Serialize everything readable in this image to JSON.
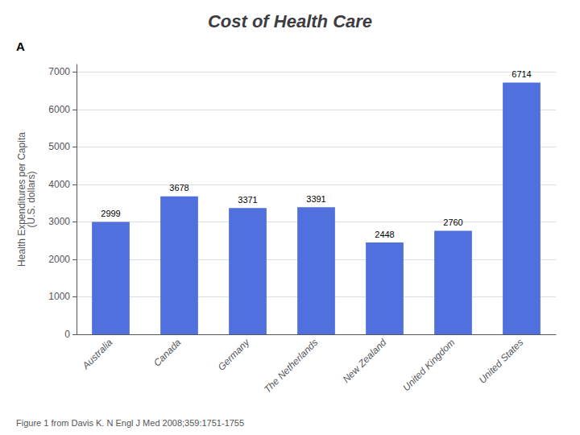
{
  "chart_data": {
    "type": "bar",
    "title": "Cost of Health Care",
    "categories": [
      "Australia",
      "Canada",
      "Germany",
      "The Netherlands",
      "New Zealand",
      "United Kingdom",
      "United States"
    ],
    "values": [
      2999,
      3678,
      3371,
      3391,
      2448,
      2760,
      6714
    ],
    "ylabel": "Health Expenditures per Capita\n(U.S. dollars)",
    "ylim": [
      0,
      7200
    ],
    "yticks": [
      0,
      1000,
      2000,
      3000,
      4000,
      5000,
      6000,
      7000
    ],
    "grid": true,
    "data_labels": true,
    "annotations": [
      "A",
      "Figure 1 from Davis K. N Engl J Med 2008;359:1751-1755"
    ]
  }
}
